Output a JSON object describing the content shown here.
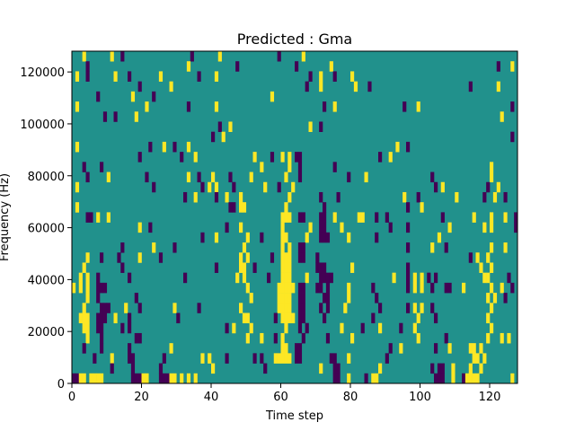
{
  "chart_data": {
    "type": "heatmap",
    "title": "Predicted : Gma",
    "xlabel": "Time step",
    "ylabel": "Frequency (Hz)",
    "xlim": [
      0,
      128
    ],
    "ylim": [
      0,
      128000
    ],
    "xticks": [
      0,
      20,
      40,
      60,
      80,
      100,
      120
    ],
    "xtick_labels": [
      "0",
      "20",
      "40",
      "60",
      "80",
      "100",
      "120"
    ],
    "yticks": [
      0,
      20000,
      40000,
      60000,
      80000,
      100000,
      120000
    ],
    "ytick_labels": [
      "0",
      "20000",
      "40000",
      "60000",
      "80000",
      "100000",
      "120000"
    ],
    "n_cols": 128,
    "n_rows": 33,
    "grid": false,
    "colormap": {
      "low": "#440154",
      "mid": "#21918c",
      "high": "#fde725"
    },
    "value_levels": {
      "p": 0,
      "background": 0.5,
      "y": 1
    },
    "rows_top_to_bottom": [
      {
        "p": [
          14,
          34,
          59
        ],
        "y": [
          3,
          11,
          42,
          66
        ]
      },
      {
        "p": [
          4,
          47,
          64,
          122
        ],
        "y": [
          33,
          74,
          126
        ]
      },
      {
        "p": [
          4,
          16,
          36,
          68,
          75
        ],
        "y": [
          1,
          12,
          25,
          41,
          71,
          80
        ]
      },
      {
        "p": [
          19,
          67,
          85,
          114
        ],
        "y": [
          28,
          71,
          81,
          122
        ]
      },
      {
        "p": [
          7,
          23
        ],
        "y": [
          17,
          57
        ]
      },
      {
        "p": [
          33,
          72,
          95,
          126
        ],
        "y": [
          1,
          21,
          41,
          75,
          99
        ]
      },
      {
        "p": [
          9,
          12
        ],
        "y": [
          18,
          123
        ]
      },
      {
        "p": [
          42,
          71
        ],
        "y": [
          45,
          68
        ]
      },
      {
        "p": [
          40,
          126
        ],
        "y": [
          43
        ]
      },
      {
        "p": [
          22,
          29,
          96
        ],
        "y": [
          1,
          26,
          33,
          93
        ]
      },
      {
        "p": [
          19,
          31,
          57,
          64,
          65,
          88
        ],
        "y": [
          35,
          52,
          60,
          62,
          91
        ]
      },
      {
        "p": [
          3,
          8,
          65,
          75
        ],
        "y": [
          54,
          62,
          120
        ]
      },
      {
        "p": [
          4,
          21,
          36,
          45,
          65,
          79,
          103
        ],
        "y": [
          10,
          33,
          40,
          51,
          61,
          84,
          120
        ]
      },
      {
        "p": [
          23,
          37,
          46,
          59,
          104,
          119
        ],
        "y": [
          1,
          39,
          41,
          55,
          63,
          106,
          122
        ]
      },
      {
        "p": [
          32,
          41,
          71,
          76,
          99,
          118,
          124
        ],
        "y": [
          35,
          44,
          48,
          62,
          95,
          110,
          121
        ]
      },
      {
        "p": [
          45,
          46,
          72,
          96
        ],
        "y": [
          1,
          48,
          49,
          61,
          100
        ]
      },
      {
        "p": [
          4,
          5,
          65,
          66,
          71,
          72,
          87,
          90,
          106,
          127
        ],
        "y": [
          7,
          10,
          60,
          61,
          62,
          75,
          82,
          83,
          115,
          120,
          124
        ]
      },
      {
        "p": [
          22,
          44,
          71,
          72,
          91,
          96,
          127
        ],
        "y": [
          19,
          48,
          60,
          68,
          77,
          108,
          118,
          120
        ]
      },
      {
        "p": [
          37,
          54,
          71,
          72,
          73,
          87
        ],
        "y": [
          41,
          50,
          60,
          61,
          67,
          79,
          105
        ]
      },
      {
        "p": [
          14,
          29,
          65,
          66,
          96,
          107
        ],
        "y": [
          23,
          49,
          60,
          62,
          103,
          120,
          124
        ]
      },
      {
        "p": [
          8,
          13,
          25,
          57,
          65,
          66,
          70,
          114
        ],
        "y": [
          4,
          19,
          48,
          50,
          60,
          61,
          62,
          116,
          119
        ]
      },
      {
        "p": [
          14,
          41,
          52,
          70,
          71,
          72,
          96
        ],
        "y": [
          3,
          48,
          49,
          60,
          61,
          62,
          80,
          117,
          120
        ]
      },
      {
        "p": [
          7,
          16,
          32,
          56,
          71,
          72,
          73,
          74,
          96,
          102,
          104,
          125
        ],
        "y": [
          2,
          4,
          47,
          49,
          60,
          61,
          62,
          67,
          92,
          98,
          100,
          118,
          119
        ]
      },
      {
        "p": [
          7,
          8,
          9,
          65,
          66,
          70,
          71,
          73,
          86,
          96,
          103,
          107,
          108,
          126
        ],
        "y": [
          0,
          2,
          4,
          50,
          59,
          60,
          61,
          62,
          63,
          79,
          98,
          100,
          112,
          120,
          123
        ]
      },
      {
        "p": [
          7,
          18,
          65,
          66,
          72,
          73,
          87,
          124
        ],
        "y": [
          4,
          51,
          59,
          60,
          61,
          62,
          79,
          119,
          121
        ]
      },
      {
        "p": [
          8,
          9,
          10,
          19,
          36,
          65,
          66,
          71,
          73,
          88,
          96,
          103
        ],
        "y": [
          3,
          15,
          29,
          48,
          59,
          60,
          61,
          62,
          78,
          98,
          100,
          120
        ]
      },
      {
        "p": [
          7,
          8,
          9,
          16,
          30,
          58,
          65,
          66,
          72,
          86,
          104
        ],
        "y": [
          2,
          3,
          4,
          12,
          49,
          50,
          60,
          61,
          62,
          63,
          99,
          119
        ]
      },
      {
        "p": [
          7,
          8,
          14,
          16,
          44,
          65,
          67,
          83,
          94
        ],
        "y": [
          3,
          4,
          46,
          51,
          61,
          77,
          88,
          98,
          120
        ]
      },
      {
        "p": [
          8,
          18,
          19,
          58,
          66,
          73,
          107
        ],
        "y": [
          4,
          50,
          54,
          60,
          80,
          99,
          119,
          123,
          125
        ]
      },
      {
        "p": [
          3,
          8,
          16,
          64,
          65,
          91,
          104
        ],
        "y": [
          28,
          60,
          61,
          94,
          108,
          114,
          115,
          117
        ]
      },
      {
        "p": [
          6,
          16,
          17,
          26,
          44,
          52,
          54,
          64,
          65,
          74,
          75,
          90
        ],
        "y": [
          11,
          37,
          39,
          58,
          59,
          60,
          61,
          62,
          79,
          115,
          116,
          118
        ]
      },
      {
        "p": [
          11,
          17,
          25,
          55,
          75,
          76,
          103,
          105,
          106
        ],
        "y": [
          40,
          71,
          88,
          109,
          114,
          117
        ]
      },
      {
        "p": [
          0,
          1,
          17,
          18,
          19,
          25,
          26,
          27,
          75,
          76,
          84,
          104,
          105,
          106,
          112
        ],
        "y": [
          2,
          3,
          5,
          6,
          7,
          8,
          20,
          21,
          28,
          29,
          31,
          33,
          35,
          79,
          86,
          87,
          109,
          113,
          114,
          115,
          116,
          126
        ]
      }
    ]
  }
}
